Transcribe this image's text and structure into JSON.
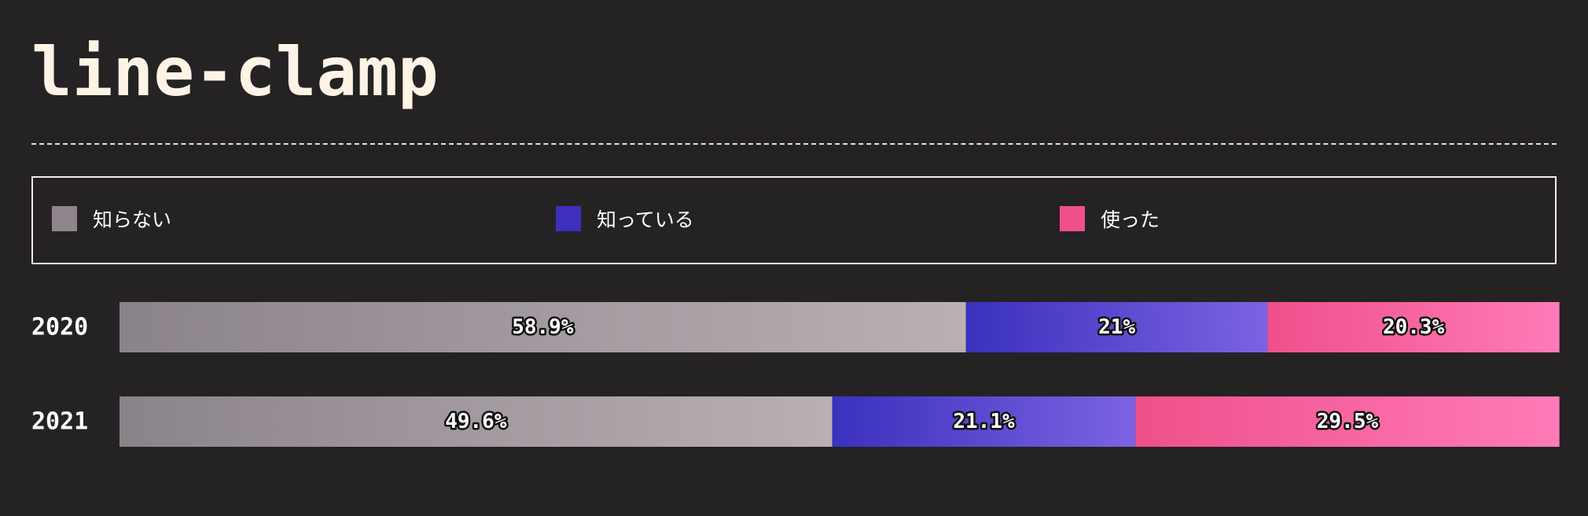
{
  "title": "line-clamp",
  "legend": [
    {
      "label": "知らない",
      "color": "#8e858c"
    },
    {
      "label": "知っている",
      "color": "#3c30bc"
    },
    {
      "label": "使った",
      "color": "#ef508c"
    }
  ],
  "chart_data": {
    "type": "bar",
    "orientation": "horizontal-stacked-100",
    "categories": [
      "2020",
      "2021"
    ],
    "series": [
      {
        "name": "知らない",
        "values": [
          58.9,
          49.6
        ],
        "labels": [
          "58.9%",
          "49.6%"
        ],
        "color": "#8e858c"
      },
      {
        "name": "知っている",
        "values": [
          21,
          21.1
        ],
        "labels": [
          "21%",
          "21.1%"
        ],
        "color": "#3c30bc"
      },
      {
        "name": "使った",
        "values": [
          20.3,
          29.5
        ],
        "labels": [
          "20.3%",
          "29.5%"
        ],
        "color": "#ef508c"
      }
    ],
    "xlim": [
      0,
      100
    ],
    "legend_position": "top",
    "grid": false
  }
}
